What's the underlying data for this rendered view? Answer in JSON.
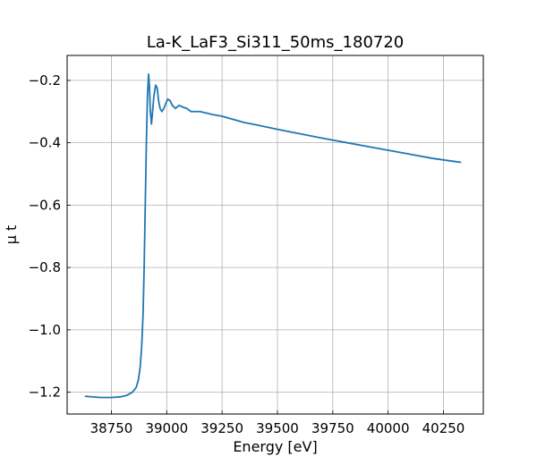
{
  "chart_data": {
    "type": "line",
    "title": "La-K_LaF3_Si311_50ms_180720",
    "xlabel": "Energy [eV]",
    "ylabel": "μ t",
    "xlim": [
      38550,
      40430
    ],
    "ylim": [
      -1.27,
      -0.12
    ],
    "x_ticks": [
      38750,
      39000,
      39250,
      39500,
      39750,
      40000,
      40250
    ],
    "x_tick_labels": [
      "38750",
      "39000",
      "39250",
      "39500",
      "39750",
      "40000",
      "40250"
    ],
    "y_ticks": [
      -1.2,
      -1.0,
      -0.8,
      -0.6,
      -0.4,
      -0.2
    ],
    "y_tick_labels": [
      "−1.2",
      "−1.0",
      "−0.8",
      "−0.6",
      "−0.4",
      "−0.2"
    ],
    "grid": true,
    "line_color": "#1f77b4",
    "series": [
      {
        "x": [
          38630,
          38700,
          38750,
          38790,
          38820,
          38845,
          38862,
          38872,
          38880,
          38887,
          38893,
          38898,
          38903,
          38908,
          38913,
          38918,
          38922,
          38926,
          38931,
          38936,
          38942,
          38950,
          38957,
          38963,
          38970,
          38978,
          38987,
          38995,
          39005,
          39015,
          39025,
          39040,
          39055,
          39070,
          39090,
          39110,
          39130,
          39150,
          39180,
          39210,
          39250,
          39300,
          39350,
          39400,
          39500,
          39600,
          39700,
          39800,
          39900,
          40000,
          40100,
          40200,
          40300,
          40330
        ],
        "y": [
          -1.213,
          -1.217,
          -1.217,
          -1.215,
          -1.21,
          -1.2,
          -1.185,
          -1.16,
          -1.12,
          -1.05,
          -0.95,
          -0.8,
          -0.6,
          -0.4,
          -0.25,
          -0.18,
          -0.22,
          -0.3,
          -0.34,
          -0.3,
          -0.25,
          -0.215,
          -0.225,
          -0.265,
          -0.29,
          -0.3,
          -0.29,
          -0.275,
          -0.26,
          -0.265,
          -0.28,
          -0.29,
          -0.28,
          -0.285,
          -0.29,
          -0.3,
          -0.3,
          -0.3,
          -0.305,
          -0.31,
          -0.315,
          -0.325,
          -0.335,
          -0.342,
          -0.357,
          -0.371,
          -0.385,
          -0.398,
          -0.411,
          -0.424,
          -0.437,
          -0.45,
          -0.46,
          -0.463
        ]
      }
    ]
  }
}
